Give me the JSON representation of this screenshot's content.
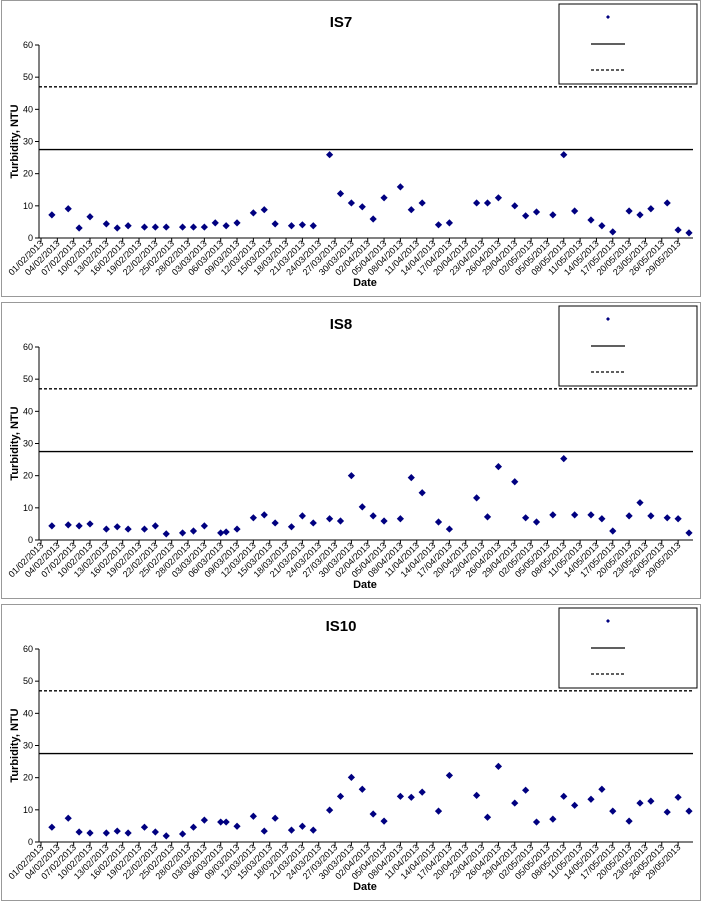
{
  "chart_data": [
    {
      "type": "scatter",
      "title": "IS7",
      "y_label": "Turbidity, NTU",
      "x_label": "Date",
      "color": "#000080",
      "legend": "upper right",
      "ylim": [
        0,
        60
      ],
      "yticks": [
        0,
        10,
        20,
        30,
        40,
        50,
        60
      ],
      "xlim": [
        "01/02/2013",
        "31/05/2013"
      ],
      "xticks": [
        "01/02/2013",
        "04/02/2013",
        "07/02/2013",
        "10/02/2013",
        "13/02/2013",
        "16/02/2013",
        "19/02/2013",
        "22/02/2013",
        "25/02/2013",
        "28/02/2013",
        "03/03/2013",
        "06/03/2013",
        "09/03/2013",
        "12/03/2013",
        "15/03/2013",
        "18/03/2013",
        "21/03/2013",
        "24/03/2013",
        "27/03/2013",
        "30/03/2013",
        "02/04/2013",
        "05/04/2013",
        "08/04/2013",
        "11/04/2013",
        "14/04/2013",
        "17/04/2013",
        "20/04/2013",
        "23/04/2013",
        "26/04/2013",
        "29/04/2013",
        "02/05/2013",
        "05/05/2013",
        "08/05/2013",
        "11/05/2013",
        "14/05/2013",
        "17/05/2013",
        "20/05/2013",
        "23/05/2013",
        "26/05/2013",
        "29/05/2013"
      ],
      "reference_lines": [
        {
          "value": 27.5,
          "style": "solid"
        },
        {
          "value": 47,
          "style": "dashed"
        }
      ],
      "x": [
        "03/02/2013",
        "06/02/2013",
        "08/02/2013",
        "10/02/2013",
        "13/02/2013",
        "15/02/2013",
        "17/02/2013",
        "20/02/2013",
        "22/02/2013",
        "24/02/2013",
        "27/02/2013",
        "01/03/2013",
        "03/03/2013",
        "05/03/2013",
        "07/03/2013",
        "09/03/2013",
        "12/03/2013",
        "14/03/2013",
        "16/03/2013",
        "19/03/2013",
        "21/03/2013",
        "23/03/2013",
        "26/03/2013",
        "28/03/2013",
        "30/03/2013",
        "01/04/2013",
        "03/04/2013",
        "05/04/2013",
        "08/04/2013",
        "10/04/2013",
        "12/04/2013",
        "15/04/2013",
        "17/04/2013",
        "22/04/2013",
        "24/04/2013",
        "26/04/2013",
        "29/04/2013",
        "01/05/2013",
        "03/05/2013",
        "06/05/2013",
        "08/05/2013",
        "10/05/2013",
        "13/05/2013",
        "15/05/2013",
        "17/05/2013",
        "20/05/2013",
        "22/05/2013",
        "24/05/2013",
        "27/05/2013",
        "29/05/2013",
        "31/05/2013"
      ],
      "values": [
        7.2,
        9.1,
        3.1,
        6.6,
        4.4,
        3.1,
        3.8,
        3.4,
        3.4,
        3.4,
        3.4,
        3.4,
        3.4,
        4.7,
        3.8,
        4.7,
        7.8,
        8.8,
        4.4,
        3.8,
        4.1,
        3.8,
        25.9,
        13.8,
        10.9,
        9.7,
        5.9,
        12.5,
        15.9,
        8.8,
        10.9,
        4.1,
        4.7,
        10.9,
        10.9,
        12.5,
        10,
        6.9,
        8.1,
        7.2,
        25.9,
        8.4,
        5.6,
        3.8,
        1.9,
        8.4,
        7.2,
        9.1,
        10.9,
        2.5,
        1.6
      ]
    },
    {
      "type": "scatter",
      "title": "IS8",
      "y_label": "Turbidity, NTU",
      "x_label": "Date",
      "color": "#000080",
      "legend": "upper right",
      "ylim": [
        0,
        60
      ],
      "yticks": [
        0,
        10,
        20,
        30,
        40,
        50,
        60
      ],
      "xlim": [
        "01/02/2013",
        "31/05/2013"
      ],
      "xticks": [
        "01/02/2013",
        "04/02/2013",
        "07/02/2013",
        "10/02/2013",
        "13/02/2013",
        "16/02/2013",
        "19/02/2013",
        "22/02/2013",
        "25/02/2013",
        "28/02/2013",
        "03/03/2013",
        "06/03/2013",
        "09/03/2013",
        "12/03/2013",
        "15/03/2013",
        "18/03/2013",
        "21/03/2013",
        "24/03/2013",
        "27/03/2013",
        "30/03/2013",
        "02/04/2013",
        "05/04/2013",
        "08/04/2013",
        "11/04/2013",
        "14/04/2013",
        "17/04/2013",
        "20/04/2013",
        "23/04/2013",
        "26/04/2013",
        "29/04/2013",
        "02/05/2013",
        "05/05/2013",
        "08/05/2013",
        "11/05/2013",
        "14/05/2013",
        "17/05/2013",
        "20/05/2013",
        "23/05/2013",
        "26/05/2013",
        "29/05/2013"
      ],
      "reference_lines": [
        {
          "value": 27.5,
          "style": "solid"
        },
        {
          "value": 47,
          "style": "dashed"
        }
      ],
      "x": [
        "03/02/2013",
        "06/02/2013",
        "08/02/2013",
        "10/02/2013",
        "13/02/2013",
        "15/02/2013",
        "17/02/2013",
        "20/02/2013",
        "22/02/2013",
        "24/02/2013",
        "27/02/2013",
        "01/03/2013",
        "03/03/2013",
        "06/03/2013",
        "07/03/2013",
        "09/03/2013",
        "12/03/2013",
        "14/03/2013",
        "16/03/2013",
        "19/03/2013",
        "21/03/2013",
        "23/03/2013",
        "26/03/2013",
        "28/03/2013",
        "30/03/2013",
        "01/04/2013",
        "03/04/2013",
        "05/04/2013",
        "08/04/2013",
        "10/04/2013",
        "12/04/2013",
        "15/04/2013",
        "17/04/2013",
        "22/04/2013",
        "24/04/2013",
        "26/04/2013",
        "29/04/2013",
        "01/05/2013",
        "03/05/2013",
        "06/05/2013",
        "08/05/2013",
        "10/05/2013",
        "13/05/2013",
        "15/05/2013",
        "17/05/2013",
        "20/05/2013",
        "22/05/2013",
        "24/05/2013",
        "27/05/2013",
        "29/05/2013",
        "31/05/2013"
      ],
      "values": [
        4.4,
        4.7,
        4.4,
        5,
        3.4,
        4.1,
        3.4,
        3.4,
        4.4,
        1.9,
        2.2,
        2.8,
        4.4,
        2.2,
        2.5,
        3.4,
        6.9,
        7.8,
        5.3,
        4.1,
        7.5,
        5.3,
        6.6,
        5.9,
        20,
        10.3,
        7.5,
        5.9,
        6.6,
        19.4,
        14.7,
        5.6,
        3.4,
        13.1,
        7.2,
        22.8,
        18.1,
        6.9,
        5.6,
        7.8,
        25.3,
        7.8,
        7.8,
        6.6,
        2.8,
        7.5,
        11.6,
        7.5,
        6.9,
        6.6,
        2.2
      ]
    },
    {
      "type": "scatter",
      "title": "IS10",
      "y_label": "Turbidity, NTU",
      "x_label": "Date",
      "color": "#000080",
      "legend": "upper right",
      "ylim": [
        0,
        60
      ],
      "yticks": [
        0,
        10,
        20,
        30,
        40,
        50,
        60
      ],
      "xlim": [
        "01/02/2013",
        "31/05/2013"
      ],
      "xticks": [
        "01/02/2013",
        "04/02/2013",
        "07/02/2013",
        "10/02/2013",
        "13/02/2013",
        "16/02/2013",
        "19/02/2013",
        "22/02/2013",
        "25/02/2013",
        "28/02/2013",
        "03/03/2013",
        "06/03/2013",
        "09/03/2013",
        "12/03/2013",
        "15/03/2013",
        "18/03/2013",
        "21/03/2013",
        "24/03/2013",
        "27/03/2013",
        "30/03/2013",
        "02/04/2013",
        "05/04/2013",
        "08/04/2013",
        "11/04/2013",
        "14/04/2013",
        "17/04/2013",
        "20/04/2013",
        "23/04/2013",
        "26/04/2013",
        "29/04/2013",
        "02/05/2013",
        "05/05/2013",
        "08/05/2013",
        "11/05/2013",
        "14/05/2013",
        "17/05/2013",
        "20/05/2013",
        "23/05/2013",
        "26/05/2013",
        "29/05/2013"
      ],
      "reference_lines": [
        {
          "value": 27.5,
          "style": "solid"
        },
        {
          "value": 47,
          "style": "dashed"
        }
      ],
      "x": [
        "03/02/2013",
        "06/02/2013",
        "08/02/2013",
        "10/02/2013",
        "13/02/2013",
        "15/02/2013",
        "17/02/2013",
        "20/02/2013",
        "22/02/2013",
        "24/02/2013",
        "27/02/2013",
        "01/03/2013",
        "03/03/2013",
        "06/03/2013",
        "07/03/2013",
        "09/03/2013",
        "12/03/2013",
        "14/03/2013",
        "16/03/2013",
        "19/03/2013",
        "21/03/2013",
        "23/03/2013",
        "26/03/2013",
        "28/03/2013",
        "30/03/2013",
        "01/04/2013",
        "03/04/2013",
        "05/04/2013",
        "08/04/2013",
        "10/04/2013",
        "12/04/2013",
        "15/04/2013",
        "17/04/2013",
        "22/04/2013",
        "24/04/2013",
        "26/04/2013",
        "29/04/2013",
        "01/05/2013",
        "03/05/2013",
        "06/05/2013",
        "08/05/2013",
        "10/05/2013",
        "13/05/2013",
        "15/05/2013",
        "17/05/2013",
        "20/05/2013",
        "22/05/2013",
        "24/05/2013",
        "27/05/2013",
        "29/05/2013",
        "31/05/2013"
      ],
      "values": [
        4.6,
        7.4,
        3.1,
        2.8,
        2.8,
        3.4,
        2.8,
        4.6,
        3.1,
        1.9,
        2.5,
        4.6,
        6.8,
        6.2,
        6.2,
        4.9,
        8,
        3.4,
        7.4,
        3.7,
        4.9,
        3.7,
        9.9,
        14.2,
        20.1,
        16.4,
        8.7,
        6.5,
        14.2,
        13.9,
        15.5,
        9.6,
        20.7,
        14.5,
        7.7,
        23.5,
        12.1,
        16.1,
        6.2,
        7.1,
        14.2,
        11.4,
        13.3,
        16.4,
        9.6,
        6.5,
        12.1,
        12.7,
        9.3,
        13.9,
        9.6
      ]
    }
  ]
}
